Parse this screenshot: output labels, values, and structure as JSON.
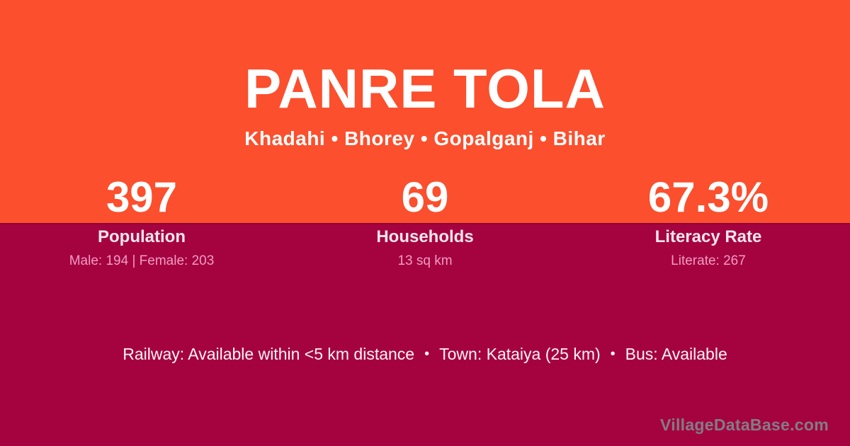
{
  "header": {
    "title": "PANRE TOLA",
    "location": "Khadahi • Bhorey • Gopalganj • Bihar"
  },
  "stats": [
    {
      "value": "397",
      "label": "Population",
      "detail": "Male: 194 | Female: 203"
    },
    {
      "value": "69",
      "label": "Households",
      "detail": "13 sq km"
    },
    {
      "value": "67.3%",
      "label": "Literacy Rate",
      "detail": "Literate: 267"
    }
  ],
  "transport": {
    "separator": "•",
    "items": [
      "Railway: Available within <5 km distance",
      "Town: Kataiya (25 km)",
      "Bus: Available"
    ]
  },
  "watermark": "VillageDataBase.com",
  "colors": {
    "hero_orange": "#FB4F2D",
    "body_maroon": "#A50340",
    "detail_pink": "#F09CC1",
    "watermark_gray": "#827C86"
  }
}
